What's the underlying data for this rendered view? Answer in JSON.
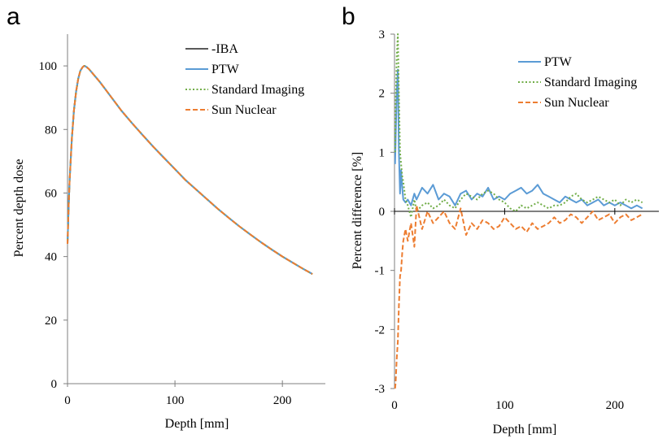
{
  "chart_data": [
    {
      "panel": "a",
      "type": "line",
      "xlabel": "Depth [mm]",
      "ylabel": "Percent depth dose",
      "xlim": [
        0,
        240
      ],
      "ylim": [
        0,
        110
      ],
      "xticks": [
        0,
        100,
        200
      ],
      "yticks": [
        0,
        20,
        40,
        60,
        80,
        100
      ],
      "grid": false,
      "legend": "top-right",
      "series": [
        {
          "name": "-IBA",
          "color": "#595959",
          "dash": "solid",
          "x": [
            0,
            1,
            2,
            4,
            6,
            8,
            10,
            12,
            14,
            15,
            16,
            18,
            20,
            25,
            30,
            40,
            50,
            60,
            70,
            80,
            90,
            100,
            110,
            120,
            130,
            140,
            150,
            160,
            170,
            180,
            190,
            200,
            210,
            220,
            228
          ],
          "y": [
            44,
            55,
            64,
            77,
            86,
            92,
            96,
            98.5,
            99.6,
            99.9,
            100,
            99.6,
            99,
            97,
            95,
            90.5,
            86,
            82,
            78.2,
            74.5,
            71,
            67.5,
            64,
            61,
            58,
            55,
            52.2,
            49.5,
            47,
            44.5,
            42.2,
            40,
            38,
            36,
            34.5
          ]
        },
        {
          "name": "PTW",
          "color": "#5b9bd5",
          "dash": "solid",
          "x": [
            0,
            1,
            2,
            4,
            6,
            8,
            10,
            12,
            14,
            15,
            16,
            18,
            20,
            25,
            30,
            40,
            50,
            60,
            70,
            80,
            90,
            100,
            110,
            120,
            130,
            140,
            150,
            160,
            170,
            180,
            190,
            200,
            210,
            220,
            228
          ],
          "y": [
            44,
            55,
            64,
            77,
            86,
            92,
            96,
            98.5,
            99.6,
            99.9,
            100,
            99.6,
            99,
            97,
            95,
            90.5,
            86,
            82,
            78.2,
            74.5,
            71,
            67.5,
            64,
            61,
            58,
            55,
            52.2,
            49.5,
            47,
            44.5,
            42.2,
            40,
            38,
            36,
            34.5
          ]
        },
        {
          "name": "Standard Imaging",
          "color": "#70ad47",
          "dash": "dotted",
          "x": [
            0,
            1,
            2,
            4,
            6,
            8,
            10,
            12,
            14,
            15,
            16,
            18,
            20,
            25,
            30,
            40,
            50,
            60,
            70,
            80,
            90,
            100,
            110,
            120,
            130,
            140,
            150,
            160,
            170,
            180,
            190,
            200,
            210,
            220,
            228
          ],
          "y": [
            44,
            55,
            64,
            77,
            86,
            92,
            96,
            98.5,
            99.6,
            99.9,
            100,
            99.6,
            99,
            97,
            95,
            90.5,
            86,
            82,
            78.2,
            74.5,
            71,
            67.5,
            64,
            61,
            58,
            55,
            52.2,
            49.5,
            47,
            44.5,
            42.2,
            40,
            38,
            36,
            34.5
          ]
        },
        {
          "name": "Sun Nuclear",
          "color": "#ed7d31",
          "dash": "dashed",
          "x": [
            0,
            1,
            2,
            4,
            6,
            8,
            10,
            12,
            14,
            15,
            16,
            18,
            20,
            25,
            30,
            40,
            50,
            60,
            70,
            80,
            90,
            100,
            110,
            120,
            130,
            140,
            150,
            160,
            170,
            180,
            190,
            200,
            210,
            220,
            228
          ],
          "y": [
            44,
            55,
            64,
            77,
            86,
            92,
            96,
            98.5,
            99.6,
            99.9,
            100,
            99.6,
            99,
            97,
            95,
            90.5,
            86,
            82,
            78.2,
            74.5,
            71,
            67.5,
            64,
            61,
            58,
            55,
            52.2,
            49.5,
            47,
            44.5,
            42.2,
            40,
            38,
            36,
            34.5
          ]
        }
      ]
    },
    {
      "panel": "b",
      "type": "line",
      "xlabel": "Depth [mm]",
      "ylabel": "Percent difference [%]",
      "xlim": [
        0,
        240
      ],
      "ylim": [
        -3,
        3
      ],
      "xticks": [
        0,
        100,
        200
      ],
      "yticks": [
        -3,
        -2,
        -1,
        0,
        1,
        2,
        3
      ],
      "grid": false,
      "legend": "top-right",
      "series": [
        {
          "name": "PTW",
          "color": "#5b9bd5",
          "dash": "solid",
          "x": [
            0.5,
            1,
            2,
            3,
            4,
            5,
            6,
            7,
            8,
            10,
            12,
            15,
            18,
            20,
            25,
            30,
            35,
            40,
            45,
            50,
            55,
            60,
            65,
            70,
            75,
            80,
            85,
            90,
            95,
            100,
            105,
            110,
            115,
            120,
            125,
            130,
            135,
            140,
            145,
            150,
            155,
            160,
            165,
            170,
            175,
            180,
            185,
            190,
            195,
            200,
            205,
            210,
            215,
            220,
            225
          ],
          "y": [
            0.8,
            1.2,
            2.0,
            2.4,
            1.0,
            0.3,
            0.7,
            0.4,
            0.2,
            0.15,
            0.2,
            0.1,
            0.3,
            0.2,
            0.4,
            0.3,
            0.45,
            0.2,
            0.3,
            0.25,
            0.1,
            0.3,
            0.35,
            0.2,
            0.3,
            0.25,
            0.4,
            0.2,
            0.25,
            0.2,
            0.3,
            0.35,
            0.4,
            0.3,
            0.35,
            0.45,
            0.3,
            0.25,
            0.2,
            0.15,
            0.25,
            0.2,
            0.15,
            0.2,
            0.1,
            0.15,
            0.2,
            0.1,
            0.15,
            0.1,
            0.15,
            0.1,
            0.05,
            0.1,
            0.05
          ]
        },
        {
          "name": "Standard Imaging",
          "color": "#70ad47",
          "dash": "dotted",
          "x": [
            0.5,
            1,
            2,
            3,
            4,
            5,
            6,
            7,
            8,
            10,
            12,
            15,
            18,
            20,
            25,
            30,
            35,
            40,
            45,
            50,
            55,
            60,
            65,
            70,
            75,
            80,
            85,
            90,
            95,
            100,
            105,
            110,
            115,
            120,
            125,
            130,
            135,
            140,
            145,
            150,
            155,
            160,
            165,
            170,
            175,
            180,
            185,
            190,
            195,
            200,
            205,
            210,
            215,
            220,
            225
          ],
          "y": [
            1.0,
            1.8,
            2.6,
            3.0,
            2.0,
            1.0,
            0.8,
            0.6,
            0.5,
            0.2,
            0.1,
            -0.1,
            0.2,
            0.0,
            0.1,
            0.15,
            0.05,
            0.1,
            0.2,
            0.1,
            0.05,
            0.2,
            0.3,
            0.25,
            0.2,
            0.3,
            0.35,
            0.3,
            0.2,
            0.15,
            0.05,
            0.0,
            0.1,
            0.05,
            0.1,
            0.15,
            0.1,
            0.05,
            0.1,
            0.1,
            0.15,
            0.25,
            0.3,
            0.2,
            0.15,
            0.2,
            0.25,
            0.2,
            0.15,
            0.2,
            0.1,
            0.2,
            0.15,
            0.2,
            0.15
          ]
        },
        {
          "name": "Sun Nuclear",
          "color": "#ed7d31",
          "dash": "dashed",
          "x": [
            0.5,
            1,
            2,
            3,
            4,
            5,
            6,
            7,
            8,
            10,
            12,
            15,
            18,
            20,
            25,
            30,
            35,
            40,
            45,
            50,
            55,
            60,
            65,
            70,
            75,
            80,
            85,
            90,
            95,
            100,
            105,
            110,
            115,
            120,
            125,
            130,
            135,
            140,
            145,
            150,
            155,
            160,
            165,
            170,
            175,
            180,
            185,
            190,
            195,
            200,
            205,
            210,
            215,
            220,
            225
          ],
          "y": [
            -3.0,
            -2.9,
            -2.5,
            -2.2,
            -1.6,
            -1.1,
            -1.0,
            -0.7,
            -0.5,
            -0.3,
            -0.5,
            -0.2,
            -0.6,
            0.1,
            -0.3,
            0.0,
            -0.2,
            -0.1,
            0.0,
            -0.2,
            -0.3,
            0.05,
            -0.4,
            -0.2,
            -0.3,
            -0.15,
            -0.2,
            -0.3,
            -0.25,
            -0.1,
            -0.2,
            -0.3,
            -0.25,
            -0.35,
            -0.2,
            -0.3,
            -0.25,
            -0.2,
            -0.1,
            -0.2,
            -0.15,
            -0.05,
            -0.1,
            -0.2,
            -0.1,
            0.0,
            -0.15,
            -0.1,
            -0.05,
            -0.2,
            -0.1,
            -0.05,
            -0.15,
            -0.1,
            -0.05
          ]
        }
      ]
    }
  ]
}
